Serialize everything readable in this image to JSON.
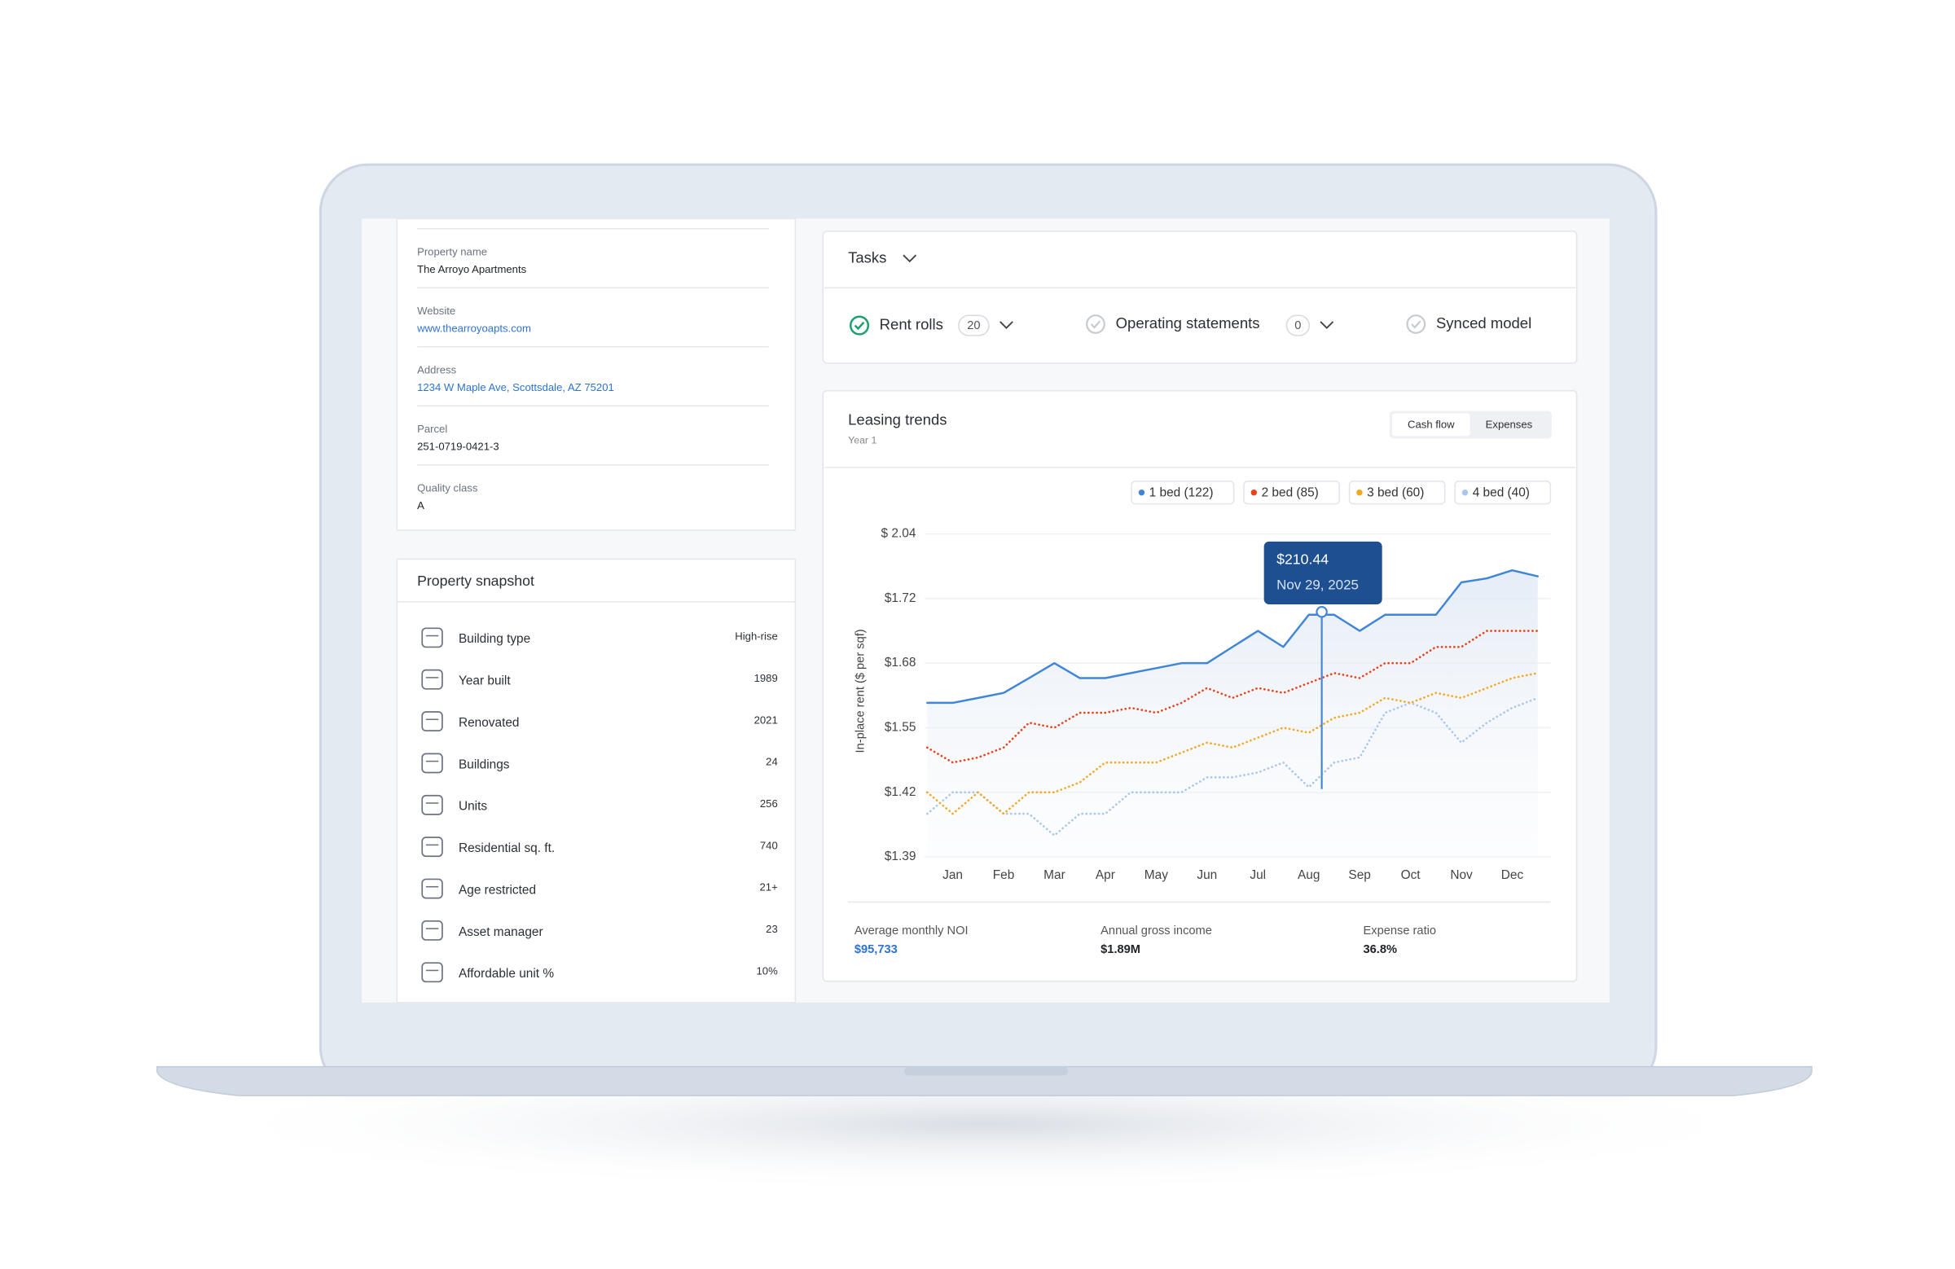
{
  "property_details": {
    "fields": [
      {
        "label": "Property name",
        "value": "The Arroyo Apartments"
      },
      {
        "label": "Website",
        "value": "www.thearroyoapts.com"
      },
      {
        "label": "Address",
        "value": "1234 W Maple Ave, Scottsdale, AZ 75201"
      },
      {
        "label": "Parcel",
        "value": "251-0719-0421-3"
      },
      {
        "label": "Quality class",
        "value": "A"
      }
    ]
  },
  "property_snapshot": {
    "title": "Property snapshot",
    "rows": [
      {
        "label": "Building type",
        "value": "High-rise"
      },
      {
        "label": "Year built",
        "value": 1989
      },
      {
        "label": "Renovated",
        "value": 2021
      },
      {
        "label": "Buildings",
        "value": 24
      },
      {
        "label": "Units",
        "value": 256
      },
      {
        "label": "Residential sq. ft.",
        "value": 740
      },
      {
        "label": "Age restricted",
        "value": "21+"
      },
      {
        "label": "Asset manager",
        "value": 23
      },
      {
        "label": "Affordable unit %",
        "value": "10%"
      }
    ]
  },
  "tasks": {
    "title": "Tasks",
    "items": [
      {
        "label": "Rent rolls",
        "count": 20
      },
      {
        "label": "Operating statements",
        "count": 0
      },
      {
        "label": "Synced model"
      }
    ]
  },
  "leasing_trends": {
    "title": "Leasing trends",
    "subtitle": "Year 1",
    "tabs": [
      "Cash flow",
      "Expenses"
    ],
    "stats": [
      {
        "label": "Average monthly NOI",
        "value": "$95,733"
      },
      {
        "label": "Annual gross income",
        "value": "$1.89M"
      },
      {
        "label": "Expense ratio",
        "value": "36.8%"
      }
    ]
  },
  "chart_data": {
    "type": "line",
    "y_label": "In-place rent ($ per sqf)",
    "grid": true,
    "area": true,
    "tooltip": {
      "title": "$210.44",
      "subtitle": "Nov 29, 2025"
    },
    "x": [
      0.5,
      1,
      1.5,
      2,
      2.5,
      3,
      3.5,
      4,
      4.5,
      5,
      5.5,
      6,
      6.5,
      7,
      7.5,
      8,
      8.5,
      9,
      9.5,
      10,
      10.5,
      11,
      11.5,
      12,
      12.5
    ],
    "xlim": [
      0.45,
      12.75
    ],
    "xticks": [
      {
        "value": 1,
        "label": "Jan"
      },
      {
        "value": 2,
        "label": "Feb"
      },
      {
        "value": 3,
        "label": "Mar"
      },
      {
        "value": 4,
        "label": "Apr"
      },
      {
        "value": 5,
        "label": "May"
      },
      {
        "value": 6,
        "label": "Jun"
      },
      {
        "value": 7,
        "label": "Jul"
      },
      {
        "value": 8,
        "label": "Aug"
      },
      {
        "value": 9,
        "label": "Sep"
      },
      {
        "value": 10,
        "label": "Oct"
      },
      {
        "value": 11,
        "label": "Nov"
      },
      {
        "value": 12,
        "label": "Dec"
      }
    ],
    "ylim": [
      1.39,
      2.04
    ],
    "yticks": [
      {
        "value": 2.04,
        "label": "$ 2.04"
      },
      {
        "value": 1.72,
        "label": "$1.72"
      },
      {
        "value": 1.68,
        "label": "$1.68"
      },
      {
        "value": 1.55,
        "label": "$1.55"
      },
      {
        "value": 1.42,
        "label": "$1.42"
      },
      {
        "value": 1.39,
        "label": "$1.39"
      }
    ],
    "series": [
      {
        "name": "1 bed (122)",
        "color": "#3f86d8",
        "style": "solid",
        "values": [
          1.6,
          1.6,
          1.61,
          1.62,
          1.65,
          1.68,
          1.65,
          1.65,
          1.66,
          1.67,
          1.68,
          1.68,
          1.69,
          1.7,
          1.69,
          1.71,
          1.71,
          1.7,
          1.71,
          1.71,
          1.71,
          1.8,
          1.82,
          1.86,
          1.83
        ]
      },
      {
        "name": "2 bed (85)",
        "color": "#e8421c",
        "style": "dotted",
        "values": [
          1.51,
          1.48,
          1.49,
          1.51,
          1.56,
          1.55,
          1.58,
          1.58,
          1.59,
          1.58,
          1.6,
          1.63,
          1.61,
          1.63,
          1.62,
          1.64,
          1.66,
          1.65,
          1.68,
          1.68,
          1.69,
          1.69,
          1.7,
          1.7,
          1.7
        ]
      },
      {
        "name": "3 bed (60)",
        "color": "#f5a623",
        "style": "dotted",
        "values": [
          1.42,
          1.41,
          1.42,
          1.41,
          1.42,
          1.42,
          1.44,
          1.48,
          1.48,
          1.48,
          1.5,
          1.52,
          1.51,
          1.53,
          1.55,
          1.54,
          1.57,
          1.58,
          1.61,
          1.6,
          1.62,
          1.61,
          1.63,
          1.65,
          1.66
        ]
      },
      {
        "name": "4 bed (40)",
        "color": "#a9c7ec",
        "style": "dotted",
        "values": [
          1.41,
          1.42,
          1.42,
          1.41,
          1.41,
          1.4,
          1.41,
          1.41,
          1.42,
          1.42,
          1.42,
          1.45,
          1.45,
          1.46,
          1.48,
          1.43,
          1.48,
          1.49,
          1.58,
          1.6,
          1.58,
          1.52,
          1.56,
          1.59,
          1.61
        ]
      }
    ]
  }
}
